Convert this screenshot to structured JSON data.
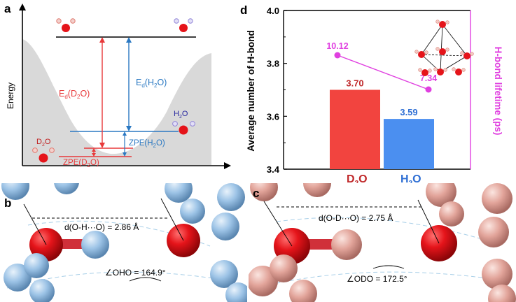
{
  "panel_a": {
    "label": "a",
    "ylabel": "Energy",
    "ed_d2o_label": "E",
    "ed_d2o_sub": "d",
    "ed_d2o_paren": "(D",
    "ed_d2o_sub2": "2",
    "ed_d2o_end": "O)",
    "ed_h2o_label": "E",
    "ed_h2o_sub": "d",
    "ed_h2o_paren": "(H",
    "ed_h2o_sub2": "2",
    "ed_h2o_end": "O)",
    "zpe_h2o": "ZPE(H",
    "zpe_h2o_sub": "2",
    "zpe_h2o_end": "O)",
    "zpe_d2o": "ZPE(D",
    "zpe_d2o_sub": "2",
    "zpe_d2o_end": "O)",
    "h2o_mol": "H",
    "h2o_mol_sub": "2",
    "h2o_mol_end": "O",
    "d2o_mol": "D",
    "d2o_mol_sub": "2",
    "d2o_mol_end": "O",
    "colors": {
      "d2o": "#e8393a",
      "h2o": "#2a78c2",
      "well": "#d9d9d9"
    }
  },
  "panel_b": {
    "label": "b",
    "distance": "d(O-H···O) = 2.86 Å",
    "angle": "∠OHO = 164.9°",
    "colors": {
      "oxygen": "#e5141a",
      "hydrogen": "#9cc3e6"
    }
  },
  "panel_c": {
    "label": "c",
    "distance": "d(O-D···O) = 2.75 Å",
    "angle": "∠ODO = 172.5°",
    "colors": {
      "oxygen": "#e5141a",
      "deuterium": "#e2a49a"
    }
  },
  "panel_d": {
    "label": "d",
    "chart_data": {
      "type": "bar",
      "categories": [
        "D2O",
        "H2O"
      ],
      "category_labels": [
        {
          "main": "D",
          "sub": "2",
          "end": "O"
        },
        {
          "main": "H",
          "sub": "2",
          "end": "O"
        }
      ],
      "values": [
        3.7,
        3.59
      ],
      "value_labels": [
        "3.70",
        "3.59"
      ],
      "bar_colors": [
        "#f2443f",
        "#4b8ff0"
      ],
      "ylabel": "Average number of H-bond",
      "ylim": [
        3.4,
        4.0
      ],
      "yticks": [
        "3.4",
        "3.6",
        "3.8",
        "4.0"
      ],
      "ytick_values": [
        3.4,
        3.6,
        3.8,
        4.0
      ],
      "y2label": "H-bond lifetime (ps)",
      "y2_color": "#e040e0",
      "lifetime": [
        10.12,
        7.34
      ],
      "lifetime_labels": [
        "10.12",
        "7.34"
      ]
    }
  }
}
